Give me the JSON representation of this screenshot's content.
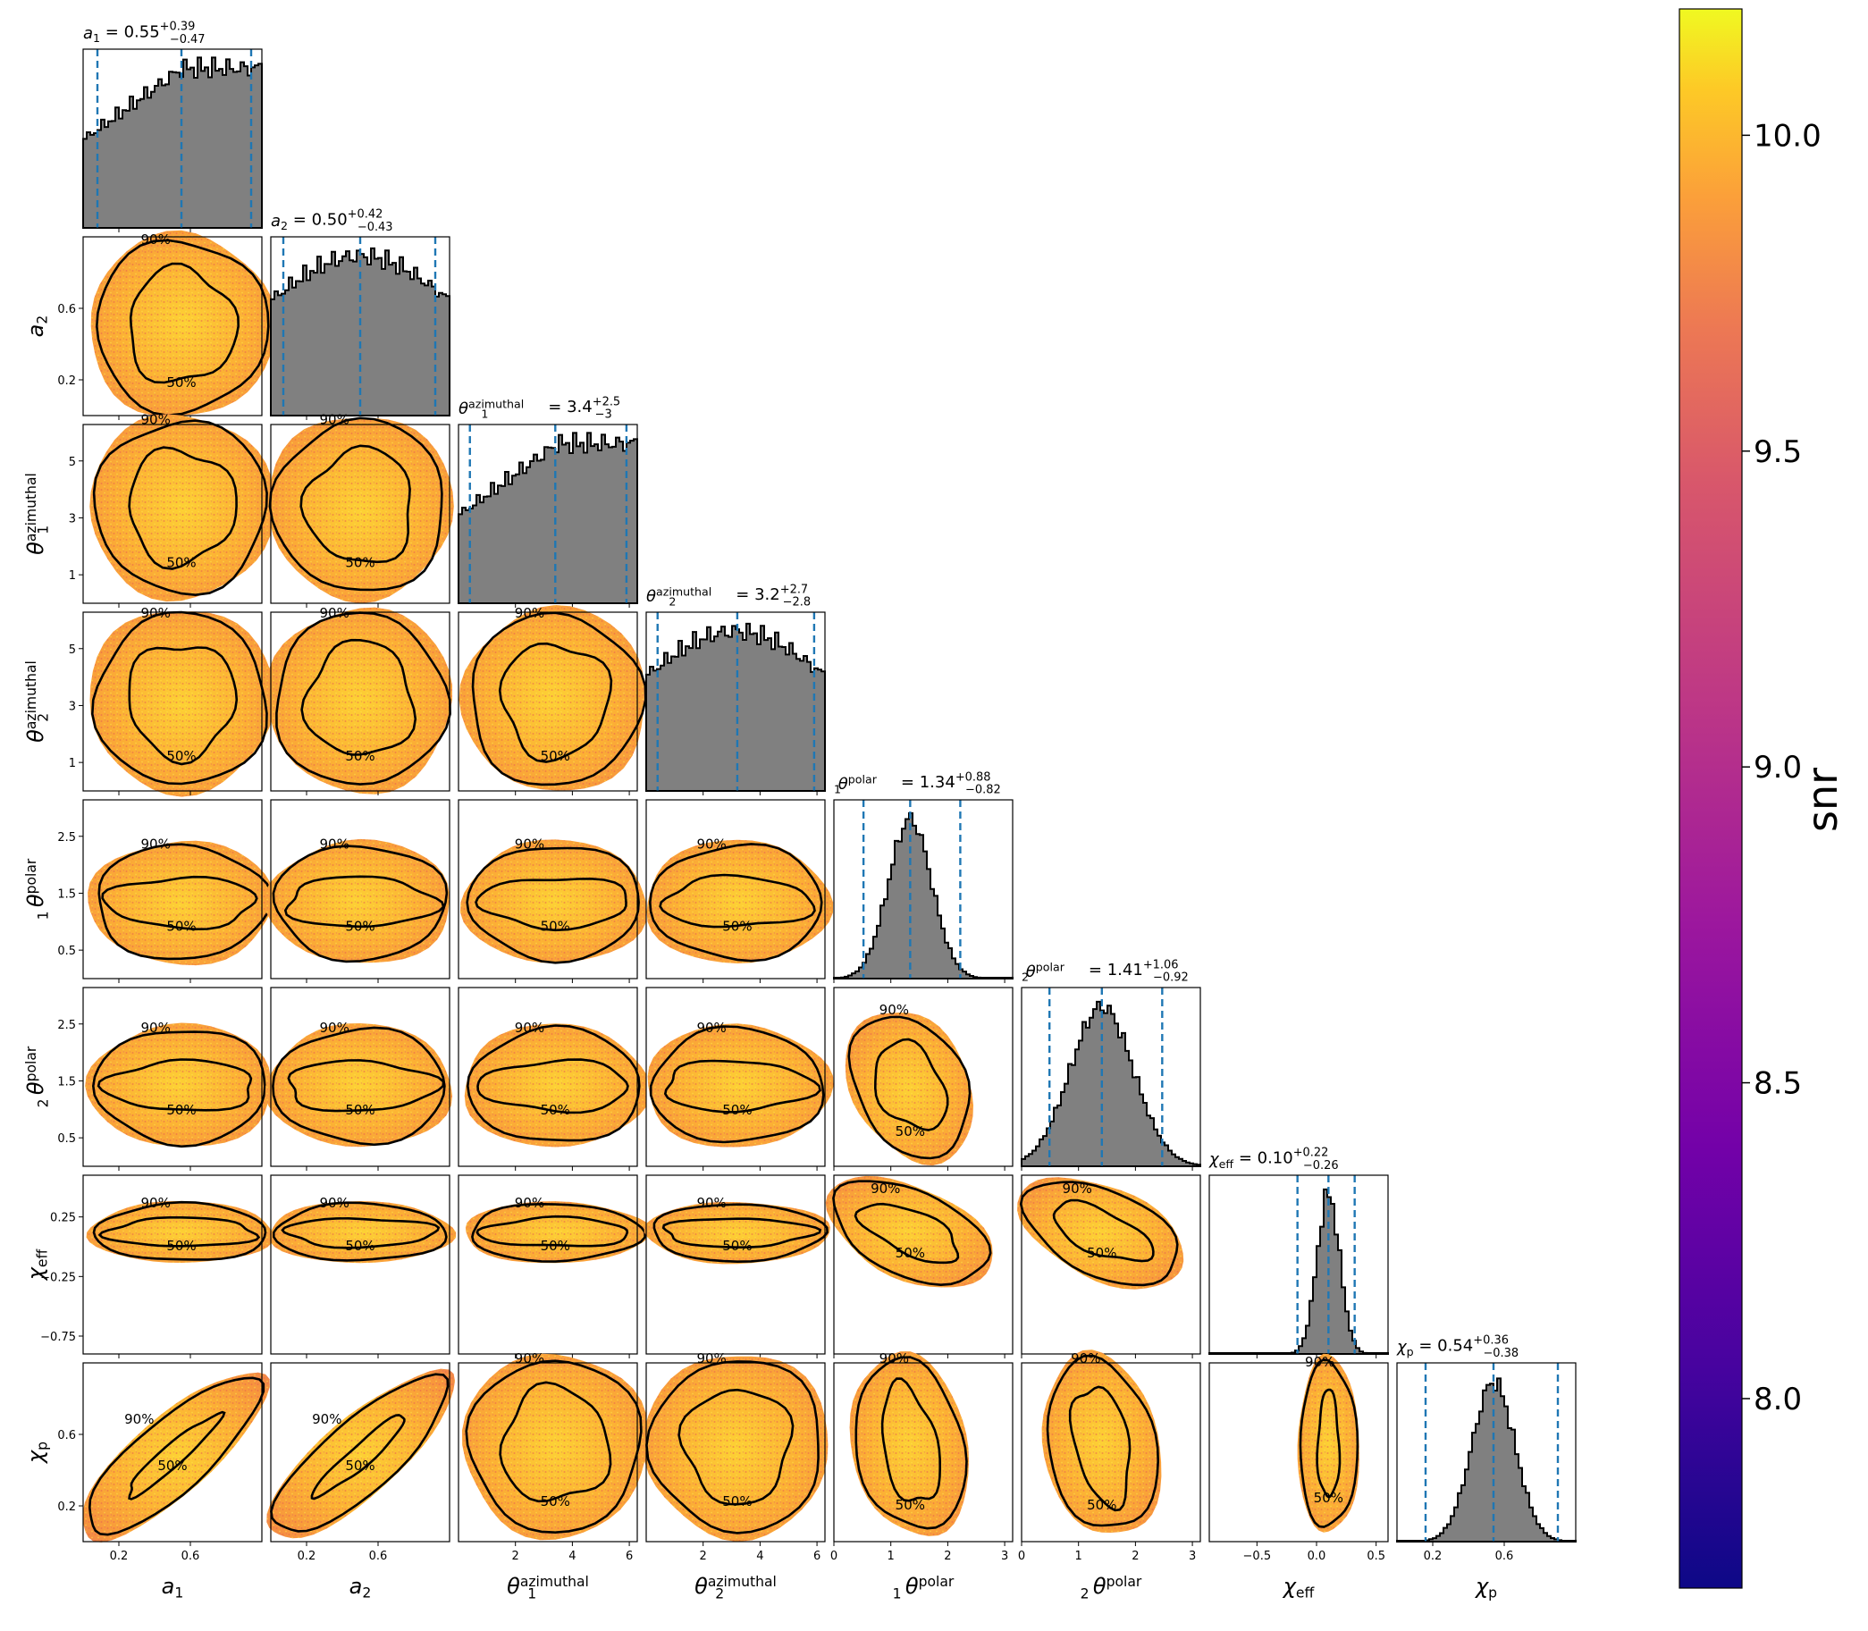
{
  "chart_data": {
    "type": "corner",
    "parameters": [
      {
        "key": "a1",
        "label": "a",
        "sub": "1",
        "title": {
          "median": "0.55",
          "plus": "+0.39",
          "minus": "−0.47"
        },
        "range": [
          0,
          1
        ],
        "ticks": [
          0.2,
          0.6
        ],
        "tick_labels": [
          "0.2",
          "0.6"
        ],
        "median": 0.55,
        "lower": 0.08,
        "upper": 0.94,
        "hist_shape": "rising"
      },
      {
        "key": "a2",
        "label": "a",
        "sub": "2",
        "title": {
          "median": "0.50",
          "plus": "+0.42",
          "minus": "−0.43"
        },
        "range": [
          0,
          1
        ],
        "ticks": [
          0.2,
          0.6
        ],
        "tick_labels": [
          "0.2",
          "0.6"
        ],
        "median": 0.5,
        "lower": 0.07,
        "upper": 0.92,
        "hist_shape": "flat"
      },
      {
        "key": "th1az",
        "label": "θ",
        "sub": "1",
        "sup": "azimuthal",
        "title": {
          "median": "3.4",
          "plus": "+2.5",
          "minus": "−3"
        },
        "range": [
          0,
          6.28
        ],
        "ticks": [
          2,
          4,
          6
        ],
        "tick_labels": [
          "2",
          "4",
          "6"
        ],
        "ylabel_ticks": [
          1,
          3,
          5
        ],
        "ylabel_tick_labels": [
          "1",
          "3",
          "5"
        ],
        "median": 3.4,
        "lower": 0.4,
        "upper": 5.9,
        "hist_shape": "rising"
      },
      {
        "key": "th2az",
        "label": "θ",
        "sub": "2",
        "sup": "azimuthal",
        "title": {
          "median": "3.2",
          "plus": "+2.7",
          "minus": "−2.8"
        },
        "range": [
          0,
          6.28
        ],
        "ticks": [
          2,
          4,
          6
        ],
        "tick_labels": [
          "2",
          "4",
          "6"
        ],
        "ylabel_ticks": [
          1,
          3,
          5
        ],
        "ylabel_tick_labels": [
          "1",
          "3",
          "5"
        ],
        "median": 3.2,
        "lower": 0.4,
        "upper": 5.9,
        "hist_shape": "flat"
      },
      {
        "key": "th1p",
        "label": "θ",
        "sub": "1",
        "sup": "polar",
        "title": {
          "median": "1.34",
          "plus": "+0.88",
          "minus": "−0.82"
        },
        "range": [
          0,
          3.14
        ],
        "ticks": [
          0,
          1,
          2,
          3
        ],
        "tick_labels": [
          "0",
          "1",
          "2",
          "3"
        ],
        "ylabel_ticks": [
          0.5,
          1.5,
          2.5
        ],
        "ylabel_tick_labels": [
          "0.5",
          "1.5",
          "2.5"
        ],
        "median": 1.34,
        "lower": 0.52,
        "upper": 2.22,
        "hist_shape": "peaked"
      },
      {
        "key": "th2p",
        "label": "θ",
        "sub": "2",
        "sup": "polar",
        "title": {
          "median": "1.41",
          "plus": "+1.06",
          "minus": "−0.92"
        },
        "range": [
          0,
          3.14
        ],
        "ticks": [
          0,
          1,
          2,
          3
        ],
        "tick_labels": [
          "0",
          "1",
          "2",
          "3"
        ],
        "ylabel_ticks": [
          0.5,
          1.5,
          2.5
        ],
        "ylabel_tick_labels": [
          "0.5",
          "1.5",
          "2.5"
        ],
        "median": 1.41,
        "lower": 0.49,
        "upper": 2.47,
        "hist_shape": "broad"
      },
      {
        "key": "chieff",
        "label": "χ",
        "sub": "eff",
        "title": {
          "median": "0.10",
          "plus": "+0.22",
          "minus": "−0.26"
        },
        "range": [
          -0.9,
          0.6
        ],
        "ticks": [
          -0.5,
          0,
          0.5
        ],
        "tick_labels": [
          "−0.5",
          "0.0",
          "0.5"
        ],
        "ylabel_ticks": [
          0.25,
          -0.25,
          -0.75
        ],
        "ylabel_tick_labels": [
          "0.25",
          "−0.25",
          "−0.75"
        ],
        "median": 0.1,
        "lower": -0.16,
        "upper": 0.32,
        "hist_shape": "narrow"
      },
      {
        "key": "chip",
        "label": "χ",
        "sub": "p",
        "title": {
          "median": "0.54",
          "plus": "+0.36",
          "minus": "−0.38"
        },
        "range": [
          0,
          1
        ],
        "ticks": [
          0.2,
          0.6
        ],
        "tick_labels": [
          "0.2",
          "0.6"
        ],
        "ylabel_ticks": [
          0.2,
          0.6
        ],
        "ylabel_tick_labels": [
          "0.2",
          "0.6"
        ],
        "median": 0.54,
        "lower": 0.16,
        "upper": 0.9,
        "hist_shape": "peaked"
      }
    ],
    "contour_levels": [
      "50%",
      "90%"
    ],
    "colorbar": {
      "label": "snr",
      "colormap": "plasma",
      "range": [
        7.7,
        10.2
      ],
      "ticks": [
        8.0,
        8.5,
        9.0,
        9.5,
        10.0
      ],
      "tick_labels": [
        "8.0",
        "8.5",
        "9.0",
        "9.5",
        "10.0"
      ]
    }
  }
}
